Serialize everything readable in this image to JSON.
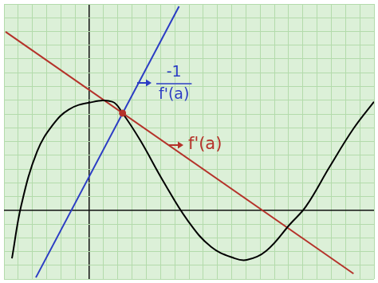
{
  "chart_data": {
    "type": "line",
    "xlim": [
      -6,
      20
    ],
    "ylim": [
      -5,
      15
    ],
    "xticks": [
      -6,
      -5,
      -4,
      -3,
      -2,
      -1,
      0,
      1,
      2,
      3,
      4,
      5,
      6,
      7,
      8,
      9,
      10,
      11,
      12,
      13,
      14,
      15,
      16,
      17,
      18,
      19,
      20
    ],
    "yticks": [
      -5,
      -4,
      -3,
      -2,
      -1,
      0,
      1,
      2,
      3,
      4,
      5,
      6,
      7,
      8,
      9,
      10,
      11,
      12,
      13,
      14,
      15
    ],
    "grid": true,
    "tick_labels": false,
    "series": [
      {
        "type": "line",
        "color": "#000000",
        "marker": "none",
        "line_style": "solid",
        "x": [
          -5.44,
          -4.78,
          -3.67,
          -2.56,
          -1.44,
          0,
          1.61,
          2.33,
          3.56,
          5.22,
          6.89,
          8.56,
          10.22,
          11.06,
          12.44,
          14.11,
          15.22,
          16.89,
          18.56,
          20.0
        ],
        "values": [
          -3.5,
          0.39,
          4.28,
          6.22,
          7.33,
          7.83,
          7.89,
          7.06,
          5.11,
          2.06,
          -0.72,
          -2.67,
          -3.5,
          -3.61,
          -2.94,
          -1.0,
          0.28,
          3.17,
          5.94,
          7.89
        ]
      },
      {
        "type": "line",
        "color": "#b5322a",
        "marker": "none",
        "line_style": "solid",
        "x": [
          -5.89,
          18.56
        ],
        "values": [
          12.98,
          -4.61
        ]
      },
      {
        "type": "line",
        "color": "#2b3cc4",
        "marker": "none",
        "line_style": "solid",
        "x": [
          6.3,
          -3.76
        ],
        "values": [
          14.83,
          -4.89
        ]
      },
      {
        "type": "scatter",
        "color": "#b5322a",
        "marker": "circle",
        "line_style": "none",
        "x": [
          2.33
        ],
        "values": [
          7.06
        ]
      }
    ],
    "annotations": [
      {
        "text": "-1",
        "below": "f'(a)",
        "color": "#2b3cc4"
      },
      {
        "text": "f'(a)",
        "color": "#b5322a"
      }
    ]
  }
}
